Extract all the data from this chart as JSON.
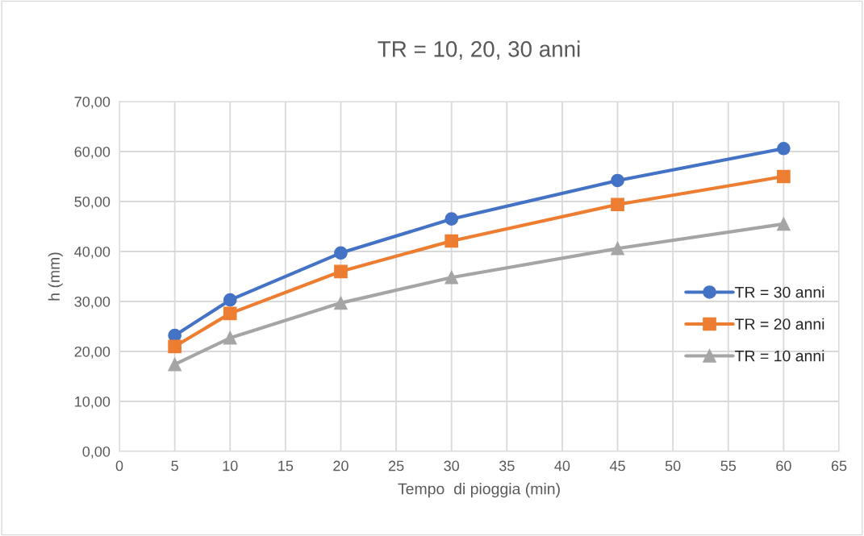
{
  "chart_data": {
    "type": "line",
    "title": "TR = 10, 20, 30 anni",
    "xlabel": "Tempo  di pioggia (min)",
    "ylabel": "h (mm)",
    "x": [
      5,
      10,
      20,
      30,
      45,
      60
    ],
    "series": [
      {
        "name": "TR = 30 anni",
        "color": "#4472c4",
        "marker": "circle",
        "values": [
          23.2,
          30.3,
          39.7,
          46.5,
          54.2,
          60.6
        ]
      },
      {
        "name": "TR = 20 anni",
        "color": "#ed7d31",
        "marker": "square",
        "values": [
          21.0,
          27.6,
          36.0,
          42.1,
          49.4,
          55.0
        ]
      },
      {
        "name": "TR = 10 anni",
        "color": "#a5a5a5",
        "marker": "triangle",
        "values": [
          17.4,
          22.7,
          29.7,
          34.8,
          40.6,
          45.5
        ]
      }
    ],
    "xlim": [
      0,
      65
    ],
    "xticks": [
      0,
      5,
      10,
      15,
      20,
      25,
      30,
      35,
      40,
      45,
      50,
      55,
      60,
      65
    ],
    "ylim": [
      0,
      70
    ],
    "yticks": [
      {
        "value": 0,
        "label": "0,00"
      },
      {
        "value": 10,
        "label": "10,00"
      },
      {
        "value": 20,
        "label": "20,00"
      },
      {
        "value": 30,
        "label": "30,00"
      },
      {
        "value": 40,
        "label": "40,00"
      },
      {
        "value": 50,
        "label": "50,00"
      },
      {
        "value": 60,
        "label": "60,00"
      },
      {
        "value": 70,
        "label": "70,00"
      }
    ],
    "grid": true,
    "legend": "right",
    "line_style": "solid"
  }
}
